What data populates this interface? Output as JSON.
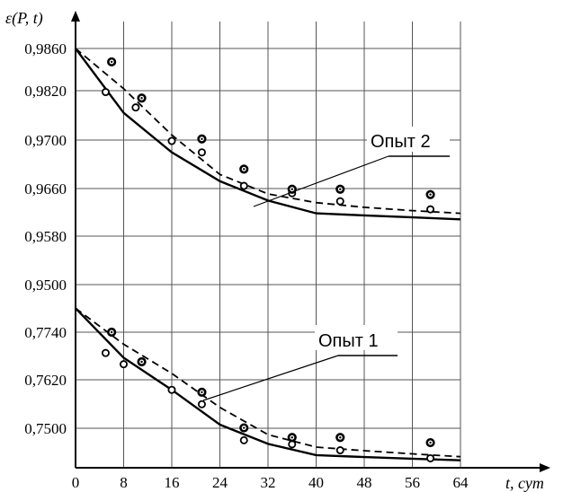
{
  "chart_data": {
    "type": "line",
    "ylabel": "ε(P, t)",
    "xlabel": "t, сут",
    "x_ticks": [
      "0",
      "8",
      "16",
      "24",
      "32",
      "40",
      "48",
      "56",
      "64"
    ],
    "xlim": [
      0,
      64
    ],
    "y_ticks": [
      "0,9860",
      "0,9820",
      "0,9700",
      "0,9660",
      "0,9580",
      "0,9500",
      "0,7740",
      "0,7620",
      "0,7500"
    ],
    "grid": true,
    "annotations": [
      "Опыт 2",
      "Опыт 1"
    ],
    "panels": [
      {
        "annotation": "Опыт 2",
        "series": [
          {
            "style": "solid",
            "x": [
              0,
              8,
              16,
              24,
              32,
              40,
              48,
              56,
              64
            ],
            "y": [
              0.986,
              0.9764,
              0.9705,
              0.9662,
              0.9633,
              0.9614,
              0.9611,
              0.9608,
              0.9605
            ]
          },
          {
            "style": "dashed",
            "x": [
              0,
              8,
              16,
              24,
              32,
              40,
              48,
              56,
              64
            ],
            "y": [
              0.986,
              0.98,
              0.9731,
              0.9672,
              0.9643,
              0.963,
              0.9623,
              0.9618,
              0.9614
            ]
          },
          {
            "style": "open-circles",
            "x": [
              5,
              10,
              16,
              21,
              28,
              36,
              44,
              59
            ],
            "y": [
              0.9795,
              0.9772,
              0.9722,
              0.9705,
              0.9655,
              0.9644,
              0.9632,
              0.962
            ]
          },
          {
            "style": "dotted-circles",
            "x": [
              6,
              11,
              21,
              28,
              36,
              44,
              59
            ],
            "y": [
              0.984,
              0.9786,
              0.9725,
              0.968,
              0.965,
              0.965,
              0.9642
            ]
          }
        ]
      },
      {
        "annotation": "Опыт 1",
        "series": [
          {
            "style": "solid",
            "x": [
              0,
              8,
              16,
              24,
              32,
              40,
              48,
              56,
              64
            ],
            "y": [
              0.78,
              0.7676,
              0.7596,
              0.7509,
              0.7461,
              0.7433,
              0.7428,
              0.7424,
              0.742
            ]
          },
          {
            "style": "dashed",
            "x": [
              0,
              8,
              16,
              24,
              32,
              40,
              48,
              56,
              64
            ],
            "y": [
              0.78,
              0.771,
              0.7637,
              0.7552,
              0.7484,
              0.7453,
              0.7444,
              0.7436,
              0.7429
            ]
          },
          {
            "style": "open-circles",
            "x": [
              5,
              8,
              16,
              21,
              28,
              36,
              44,
              59
            ],
            "y": [
              0.7688,
              0.766,
              0.7596,
              0.756,
              0.747,
              0.746,
              0.7445,
              0.7425
            ]
          },
          {
            "style": "dotted-circles",
            "x": [
              6,
              11,
              21,
              28,
              36,
              44,
              59
            ],
            "y": [
              0.774,
              0.7666,
              0.759,
              0.7501,
              0.7477,
              0.7477,
              0.7464
            ]
          }
        ]
      }
    ]
  },
  "colors": {
    "line": "#000000",
    "grid": "#555555",
    "background": "#ffffff"
  }
}
